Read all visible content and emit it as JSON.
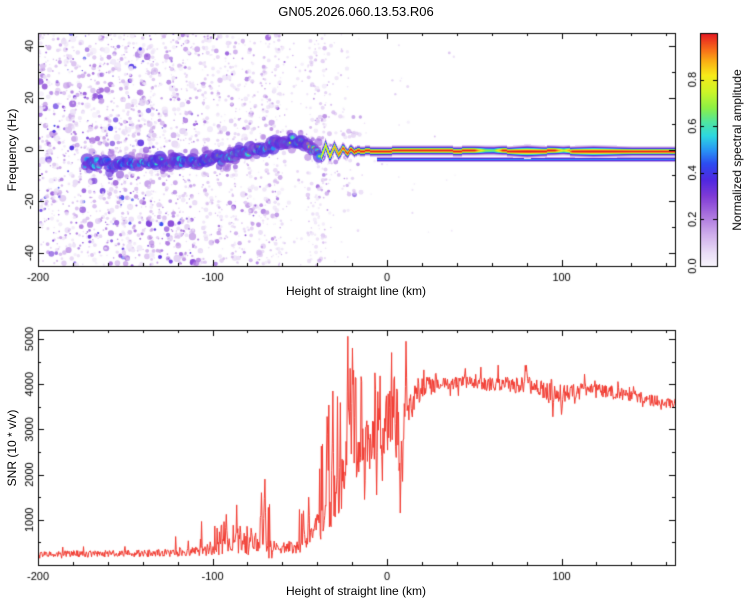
{
  "title": "GN05.2026.060.13.53.R06",
  "chart_data": [
    {
      "type": "heatmap",
      "name": "spectrogram",
      "xlabel": "Height of straight line (km)",
      "ylabel": "Frequency (Hz)",
      "xlim": [
        -200,
        165
      ],
      "ylim": [
        -45,
        45
      ],
      "xticks": [
        -200,
        -100,
        0,
        100
      ],
      "xtick_labels": [
        "-200",
        "-100",
        "0",
        "100"
      ],
      "yticks": [
        -40,
        -20,
        0,
        20,
        40
      ],
      "ytick_labels": [
        "-40",
        "-20",
        "0",
        "20",
        "40"
      ],
      "xminor": 20,
      "yminor": 10,
      "seed": 11,
      "colorbar": {
        "label": "Normalized spectral amplitude",
        "range": [
          0,
          1
        ],
        "ticks": [
          0,
          0.2,
          0.4,
          0.6,
          0.8
        ],
        "tick_labels": [
          "0.0",
          "0.2",
          "0.4",
          "0.6",
          "0.8"
        ]
      },
      "colormap": [
        [
          0.0,
          248,
          246,
          252
        ],
        [
          0.06,
          233,
          220,
          246
        ],
        [
          0.14,
          206,
          172,
          235
        ],
        [
          0.22,
          170,
          115,
          222
        ],
        [
          0.3,
          128,
          60,
          214
        ],
        [
          0.37,
          80,
          40,
          225
        ],
        [
          0.44,
          45,
          75,
          240
        ],
        [
          0.5,
          40,
          150,
          245
        ],
        [
          0.56,
          45,
          215,
          225
        ],
        [
          0.62,
          80,
          230,
          160
        ],
        [
          0.68,
          140,
          240,
          70
        ],
        [
          0.75,
          205,
          245,
          40
        ],
        [
          0.82,
          248,
          235,
          25
        ],
        [
          0.88,
          250,
          175,
          20
        ],
        [
          0.93,
          248,
          110,
          25
        ],
        [
          1.0,
          230,
          25,
          35
        ]
      ],
      "noise_regions": [
        {
          "x0": -200,
          "x1": -110,
          "count": 1500,
          "tmax": 0.42,
          "rmax": 3.2
        },
        {
          "x0": -110,
          "x1": -58,
          "count": 520,
          "tmax": 0.3,
          "rmax": 2.6
        },
        {
          "x0": -58,
          "x1": -22,
          "count": 150,
          "tmax": 0.22,
          "rmax": 2.0
        },
        {
          "x0": -22,
          "x1": 40,
          "count": 28,
          "tmax": 0.12,
          "rmax": 1.4
        }
      ],
      "noise_columns": [
        -150,
        -134,
        -104,
        -96,
        -88,
        -78,
        -70,
        -63,
        -44,
        -40,
        -36
      ],
      "wisps": {
        "x0": -40,
        "x1": -14,
        "count": 60,
        "fmin": -18,
        "fmax": 14,
        "tmax": 0.3
      },
      "track_start": -173,
      "track_points": [
        [
          -175,
          -5
        ],
        [
          -160,
          -5.5
        ],
        [
          -148,
          -5
        ],
        [
          -136,
          -4.8
        ],
        [
          -124,
          -4.6
        ],
        [
          -112,
          -4.6
        ],
        [
          -100,
          -4
        ],
        [
          -92,
          -3
        ],
        [
          -84,
          -1.8
        ],
        [
          -76,
          -0.5
        ],
        [
          -70,
          0.8
        ],
        [
          -64,
          2.2
        ],
        [
          -58,
          3.4
        ],
        [
          -53,
          3.2
        ],
        [
          -48,
          2
        ],
        [
          -44,
          0.8
        ],
        [
          -40,
          -0.6
        ],
        [
          -38,
          -1.5
        ]
      ],
      "track_amp": [
        [
          -175,
          0.45
        ],
        [
          -150,
          0.5
        ],
        [
          -120,
          0.55
        ],
        [
          -100,
          0.6
        ],
        [
          -80,
          0.62
        ],
        [
          -60,
          0.66
        ],
        [
          -45,
          0.7
        ],
        [
          -38,
          0.74
        ]
      ],
      "line_points": [
        [
          -38,
          -2.8
        ],
        [
          -35.5,
          1.8
        ],
        [
          -33,
          -2.6
        ],
        [
          -30.5,
          1.4
        ],
        [
          -28,
          -2
        ],
        [
          -25.5,
          0.8
        ],
        [
          -23,
          -1.4
        ],
        [
          -21,
          0.3
        ],
        [
          -19,
          -0.9
        ],
        [
          -17,
          -0.1
        ],
        [
          -15,
          -0.6
        ],
        [
          -12,
          -0.3
        ],
        [
          -8,
          -0.5
        ],
        [
          0,
          -0.4
        ],
        [
          20,
          -0.3
        ],
        [
          40,
          -0.4
        ],
        [
          60,
          -0.3
        ],
        [
          80,
          -0.5
        ],
        [
          90,
          -0.4
        ],
        [
          100,
          -0.3
        ],
        [
          110,
          -0.5
        ],
        [
          120,
          -0.6
        ],
        [
          130,
          -0.4
        ],
        [
          145,
          -0.5
        ],
        [
          165,
          -0.5
        ]
      ],
      "line_width": [
        [
          -38,
          3.4
        ],
        [
          -32,
          3
        ],
        [
          -26,
          2.6
        ],
        [
          -20,
          2.3
        ],
        [
          0,
          2.2
        ],
        [
          70,
          2.3
        ],
        [
          80,
          3
        ],
        [
          88,
          2.5
        ],
        [
          100,
          2.2
        ],
        [
          118,
          2.8
        ],
        [
          126,
          2.6
        ],
        [
          140,
          2.2
        ],
        [
          165,
          2.2
        ]
      ],
      "line_amp": [
        [
          -38,
          0.8
        ],
        [
          -32,
          0.88
        ],
        [
          -27,
          0.95
        ],
        [
          -22,
          1
        ],
        [
          50,
          1
        ],
        [
          56,
          0.7
        ],
        [
          61,
          0.66
        ],
        [
          66,
          1
        ],
        [
          96,
          1
        ],
        [
          101,
          0.75
        ],
        [
          106,
          1
        ],
        [
          165,
          1
        ]
      ],
      "second_line": {
        "from": -6,
        "to": 165,
        "offset": -3.2,
        "amp": 0.5,
        "width": 1.3
      }
    },
    {
      "type": "line",
      "name": "snr",
      "xlabel": "Height of straight line (km)",
      "ylabel": "SNR (10 * v/v)",
      "color": "#f23a30",
      "xlim": [
        -200,
        165
      ],
      "ylim": [
        0,
        5200
      ],
      "xticks": [
        -200,
        -100,
        0,
        100
      ],
      "xtick_labels": [
        "-200",
        "-100",
        "0",
        "100"
      ],
      "yticks": [
        1000,
        2000,
        3000,
        4000,
        5000
      ],
      "ytick_labels": [
        "1000",
        "2000",
        "3000",
        "4000",
        "5000"
      ],
      "xminor": 20,
      "yminor": 500,
      "seed": 29,
      "dx": 0.33,
      "vmin": 150,
      "base": [
        [
          -200,
          240
        ],
        [
          -160,
          250
        ],
        [
          -130,
          265
        ],
        [
          -110,
          300
        ],
        [
          -95,
          380
        ],
        [
          -85,
          450
        ],
        [
          -75,
          520
        ],
        [
          -68,
          430
        ],
        [
          -60,
          370
        ],
        [
          -50,
          420
        ],
        [
          -44,
          550
        ],
        [
          -40,
          800
        ],
        [
          -36,
          1000
        ],
        [
          -32,
          1200
        ],
        [
          -28,
          1500
        ],
        [
          -24,
          1900
        ],
        [
          -20,
          2300
        ],
        [
          -16,
          2500
        ],
        [
          -12,
          2600
        ],
        [
          -8,
          2700
        ],
        [
          -4,
          2900
        ],
        [
          0,
          3100
        ],
        [
          4,
          3200
        ],
        [
          8,
          3000
        ],
        [
          12,
          3500
        ],
        [
          16,
          3750
        ],
        [
          20,
          3900
        ],
        [
          30,
          4000
        ],
        [
          45,
          4050
        ],
        [
          60,
          4000
        ],
        [
          75,
          3980
        ],
        [
          85,
          3950
        ],
        [
          95,
          3850
        ],
        [
          105,
          3800
        ],
        [
          115,
          3880
        ],
        [
          125,
          3830
        ],
        [
          135,
          3780
        ],
        [
          145,
          3700
        ],
        [
          155,
          3620
        ],
        [
          165,
          3560
        ]
      ],
      "noise": [
        [
          -200,
          70
        ],
        [
          -140,
          80
        ],
        [
          -110,
          100
        ],
        [
          -90,
          220
        ],
        [
          -75,
          320
        ],
        [
          -62,
          120
        ],
        [
          -50,
          160
        ],
        [
          -42,
          280
        ],
        [
          -35,
          420
        ],
        [
          -28,
          550
        ],
        [
          -22,
          700
        ],
        [
          -16,
          650
        ],
        [
          -10,
          600
        ],
        [
          -4,
          650
        ],
        [
          2,
          700
        ],
        [
          8,
          650
        ],
        [
          14,
          420
        ],
        [
          20,
          260
        ],
        [
          30,
          140
        ],
        [
          50,
          130
        ],
        [
          65,
          160
        ],
        [
          80,
          200
        ],
        [
          95,
          260
        ],
        [
          110,
          180
        ],
        [
          130,
          140
        ],
        [
          150,
          130
        ],
        [
          165,
          120
        ]
      ],
      "spike_prob": [
        [
          -200,
          0.02
        ],
        [
          -130,
          0.03
        ],
        [
          -100,
          0.12
        ],
        [
          -85,
          0.2
        ],
        [
          -70,
          0.25
        ],
        [
          -60,
          0.06
        ],
        [
          -50,
          0.1
        ],
        [
          -42,
          0.2
        ],
        [
          -34,
          0.3
        ],
        [
          -26,
          0.35
        ],
        [
          -18,
          0.35
        ],
        [
          -10,
          0.3
        ],
        [
          0,
          0.3
        ],
        [
          8,
          0.25
        ],
        [
          14,
          0.15
        ],
        [
          25,
          0.08
        ],
        [
          60,
          0.08
        ],
        [
          90,
          0.12
        ],
        [
          110,
          0.08
        ],
        [
          165,
          0.06
        ]
      ],
      "spike_extra": [
        [
          -200,
          250
        ],
        [
          -130,
          350
        ],
        [
          -100,
          600
        ],
        [
          -85,
          800
        ],
        [
          -70,
          1100
        ],
        [
          -60,
          400
        ],
        [
          -50,
          700
        ],
        [
          -42,
          1400
        ],
        [
          -34,
          2200
        ],
        [
          -26,
          2600
        ],
        [
          -18,
          2200
        ],
        [
          -10,
          1600
        ],
        [
          0,
          1500
        ],
        [
          8,
          1400
        ],
        [
          14,
          700
        ],
        [
          25,
          350
        ],
        [
          60,
          350
        ],
        [
          90,
          450
        ],
        [
          120,
          300
        ],
        [
          165,
          250
        ]
      ],
      "features": [
        [
          -92,
          1120
        ],
        [
          -86,
          1330
        ],
        [
          -72,
          1600
        ],
        [
          -70,
          1900
        ],
        [
          -48,
          1200
        ],
        [
          -45,
          1500
        ],
        [
          -31,
          3850
        ],
        [
          -22.6,
          5060
        ],
        [
          -21,
          4350
        ],
        [
          -19.7,
          4800
        ],
        [
          -18.2,
          4150
        ],
        [
          -13,
          1450
        ],
        [
          -6,
          1550
        ],
        [
          4,
          4100
        ],
        [
          7.5,
          1150
        ],
        [
          9,
          1850
        ],
        [
          11,
          4950
        ],
        [
          45,
          4350
        ],
        [
          80,
          4420
        ],
        [
          95,
          3280
        ],
        [
          100,
          3330
        ]
      ]
    }
  ]
}
